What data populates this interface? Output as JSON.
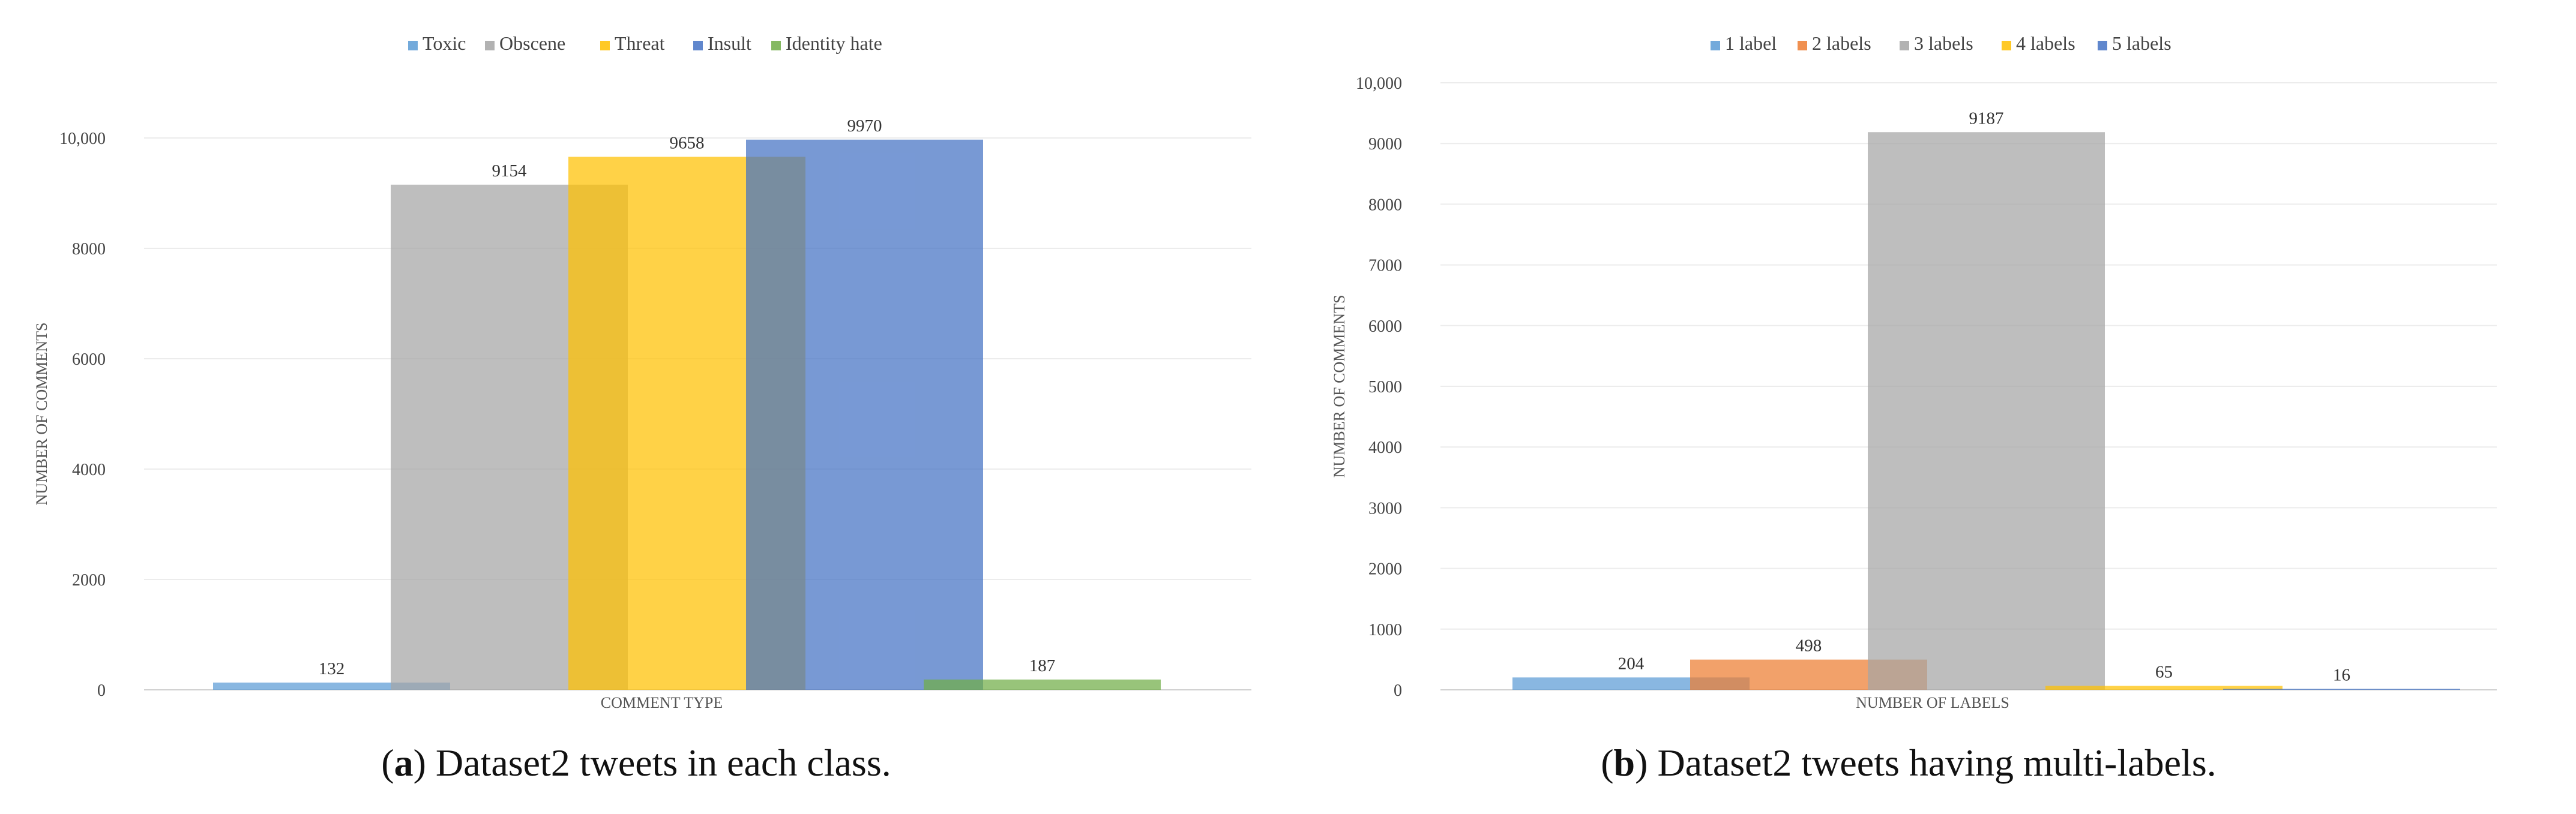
{
  "chart_data": [
    {
      "type": "bar",
      "panel": "a",
      "xlabel": "COMMENT TYPE",
      "ylabel": "NUMBER OF COMMENTS",
      "ylim": [
        0,
        10000
      ],
      "yticks": [
        0,
        2000,
        4000,
        6000,
        8000,
        10000
      ],
      "ytick_labels": [
        "0",
        "2000",
        "4000",
        "6000",
        "8000",
        "10,000"
      ],
      "legend_position": "top-center",
      "grid": true,
      "series": [
        {
          "name": "Toxic",
          "value": 132,
          "color": "#5B9BD5"
        },
        {
          "name": "Obscene",
          "value": 9154,
          "color": "#A5A5A5"
        },
        {
          "name": "Threat",
          "value": 9658,
          "color": "#FFC000"
        },
        {
          "name": "Insult",
          "value": 9970,
          "color": "#4472C4"
        },
        {
          "name": "Identity hate",
          "value": 187,
          "color": "#70AD47"
        }
      ]
    },
    {
      "type": "bar",
      "panel": "b",
      "xlabel": "NUMBER OF LABELS",
      "ylabel": "NUMBER OF COMMENTS",
      "ylim": [
        0,
        10000
      ],
      "yticks": [
        0,
        1000,
        2000,
        3000,
        4000,
        5000,
        6000,
        7000,
        8000,
        9000,
        10000
      ],
      "ytick_labels": [
        "0",
        "1000",
        "2000",
        "3000",
        "4000",
        "5000",
        "6000",
        "7000",
        "8000",
        "9000",
        "10,000"
      ],
      "legend_position": "top-center",
      "grid": true,
      "series": [
        {
          "name": "1 label",
          "value": 204,
          "color": "#5B9BD5"
        },
        {
          "name": "2 labels",
          "value": 498,
          "color": "#ED7D31"
        },
        {
          "name": "3 labels",
          "value": 9187,
          "color": "#A5A5A5"
        },
        {
          "name": "4 labels",
          "value": 65,
          "color": "#FFC000"
        },
        {
          "name": "5 labels",
          "value": 16,
          "color": "#4472C4"
        }
      ]
    }
  ],
  "captions": {
    "a": {
      "letter": "a",
      "text": ") Dataset2 tweets in each class."
    },
    "b": {
      "letter": "b",
      "text": ") Dataset2 tweets having multi-labels."
    }
  }
}
